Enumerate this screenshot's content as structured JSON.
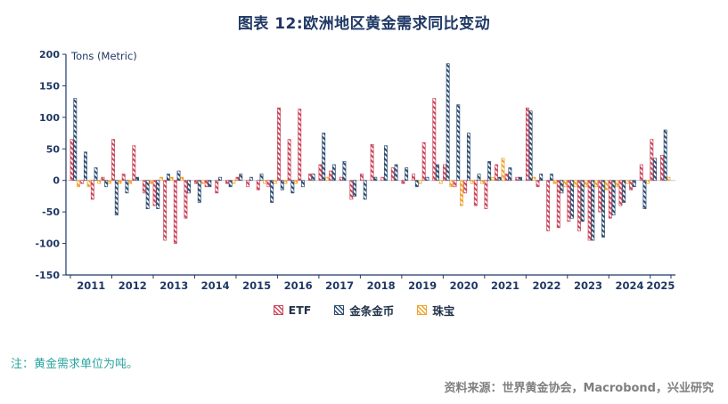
{
  "title": "图表 12:欧洲地区黄金需求同比变动",
  "note": "注：黄金需求单位为吨。",
  "source": "资料来源：世界黄金协会，Macrobond，兴业研究",
  "colors": {
    "title": "#1F3864",
    "axis": "#1F3864",
    "note": "#2AA5A0",
    "source": "#7F7F7F",
    "zero_line": "#C2C8D2"
  },
  "chart_data": {
    "type": "bar",
    "title": "图表 12:欧洲地区黄金需求同比变动",
    "ylabel": "Tons (Metric)",
    "ylim": [
      -150,
      200
    ],
    "yticks": [
      200,
      150,
      100,
      50,
      0,
      -50,
      -100,
      -150
    ],
    "grid": false,
    "legend_position": "bottom",
    "x_year_labels": [
      "2011",
      "2012",
      "2013",
      "2014",
      "2015",
      "2016",
      "2017",
      "2018",
      "2019",
      "2020",
      "2021",
      "2022",
      "2023",
      "2024",
      "2025"
    ],
    "quarters_per_year": [
      4,
      4,
      4,
      4,
      4,
      4,
      4,
      4,
      4,
      4,
      4,
      4,
      4,
      4,
      2
    ],
    "series": [
      {
        "name": "ETF",
        "color": "#C9455A",
        "values": [
          65,
          -5,
          -30,
          5,
          65,
          10,
          55,
          -20,
          -40,
          -95,
          -100,
          -60,
          -5,
          -10,
          -20,
          -5,
          5,
          -10,
          -15,
          -10,
          115,
          65,
          113,
          10,
          25,
          15,
          5,
          -30,
          10,
          57,
          5,
          20,
          -5,
          10,
          60,
          130,
          25,
          -10,
          -20,
          -40,
          -45,
          25,
          10,
          5,
          115,
          -10,
          -80,
          -75,
          -65,
          -80,
          -95,
          -50,
          -60,
          -40,
          -15,
          25,
          65,
          40
        ]
      },
      {
        "name": "金条金币",
        "color": "#2E4D71",
        "values": [
          130,
          45,
          20,
          -10,
          -55,
          -20,
          5,
          -45,
          -45,
          10,
          15,
          -20,
          -35,
          -10,
          5,
          -10,
          10,
          5,
          10,
          -35,
          -15,
          -20,
          -10,
          10,
          75,
          25,
          30,
          -25,
          -30,
          5,
          55,
          25,
          20,
          -10,
          5,
          25,
          185,
          120,
          75,
          10,
          30,
          5,
          20,
          5,
          110,
          10,
          10,
          -20,
          -60,
          -65,
          -95,
          -90,
          -55,
          -35,
          -10,
          -45,
          35,
          80
        ]
      },
      {
        "name": "珠宝",
        "color": "#F0A22E",
        "values": [
          -10,
          -10,
          -5,
          -5,
          -5,
          -5,
          0,
          -5,
          5,
          5,
          5,
          0,
          -5,
          0,
          0,
          -5,
          0,
          0,
          -5,
          -5,
          -5,
          -5,
          0,
          0,
          5,
          0,
          0,
          0,
          0,
          0,
          0,
          0,
          0,
          -5,
          0,
          -5,
          -10,
          -40,
          -5,
          -5,
          5,
          35,
          0,
          0,
          5,
          0,
          -5,
          -10,
          -10,
          -10,
          -10,
          -15,
          -10,
          -5,
          0,
          -5,
          0,
          5
        ]
      }
    ]
  }
}
